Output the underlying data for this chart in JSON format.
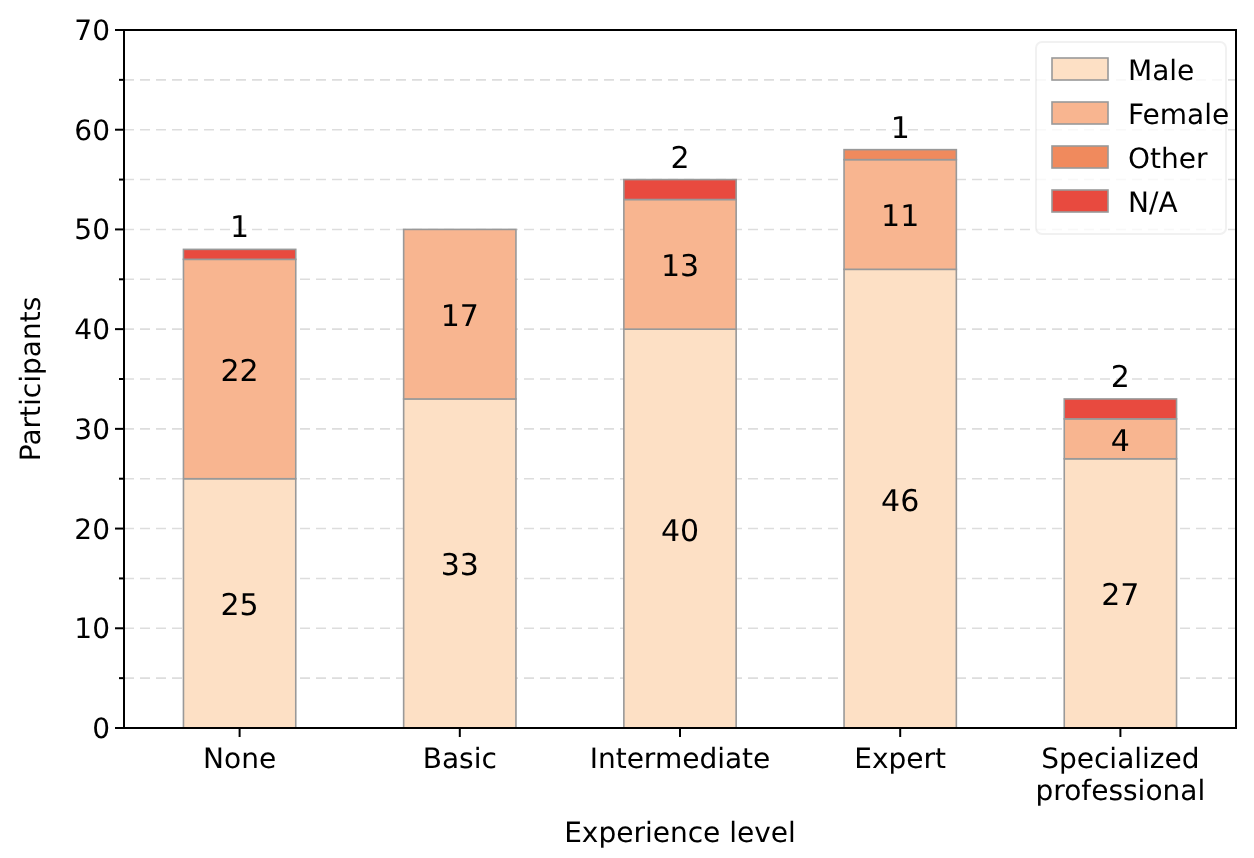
{
  "chart_data": {
    "type": "bar",
    "stacked": true,
    "xlabel": "Experience level",
    "ylabel": "Participants",
    "categories": [
      "None",
      "Basic",
      "Intermediate",
      "Expert",
      "Specialized professional"
    ],
    "series": [
      {
        "name": "Male",
        "color": "#fde0c5",
        "values": [
          25,
          33,
          40,
          46,
          27
        ],
        "value_labels": [
          "25",
          "33",
          "40",
          "46",
          "27"
        ]
      },
      {
        "name": "Female",
        "color": "#f8b590",
        "values": [
          22,
          17,
          13,
          11,
          4
        ],
        "value_labels": [
          "22",
          "17",
          "13",
          "11",
          "4"
        ]
      },
      {
        "name": "Other",
        "color": "#f08a5d",
        "values": [
          0,
          0,
          0,
          1,
          0
        ],
        "value_labels": [
          null,
          null,
          null,
          "1",
          null
        ]
      },
      {
        "name": "N/A",
        "color": "#e84a3f",
        "values": [
          1,
          0,
          2,
          0,
          2
        ],
        "value_labels": [
          "1",
          null,
          "2",
          null,
          "2"
        ]
      }
    ],
    "ylim": [
      0,
      70
    ],
    "yticks": [
      0,
      {
        "value": 5,
        "label": null
      },
      10,
      {
        "value": 15,
        "label": null
      },
      20,
      {
        "value": 25,
        "label": null
      },
      30,
      {
        "value": 35,
        "label": null
      },
      40,
      {
        "value": 45,
        "label": null
      },
      50,
      {
        "value": 55,
        "label": null
      },
      60,
      {
        "value": 65,
        "label": null
      },
      70
    ],
    "grid": "y",
    "legend": "top right"
  }
}
